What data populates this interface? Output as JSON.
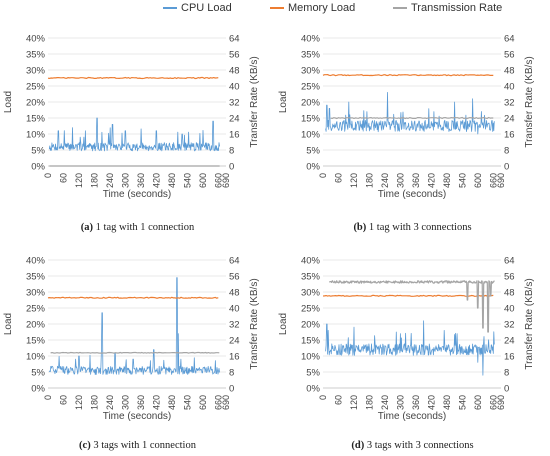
{
  "legend": {
    "items": [
      {
        "label": "CPU Load",
        "color": "#5b9bd5"
      },
      {
        "label": "Memory Load",
        "color": "#ed7d31"
      },
      {
        "label": "Transmission Rate",
        "color": "#a5a5a5"
      }
    ]
  },
  "captions": [
    {
      "letter": "(a)",
      "text": "1 tag with 1 connection"
    },
    {
      "letter": "(b)",
      "text": "1 tag with 3 connections"
    },
    {
      "letter": "(c)",
      "text": "3 tags with 1 connection"
    },
    {
      "letter": "(d)",
      "text": "3 tags with 3 connections"
    }
  ],
  "chart_data": [
    {
      "type": "line",
      "xlabel": "Time (seconds)",
      "ylabel_left": "Load",
      "ylabel_right": "Transfer Rate (KB/s)",
      "xlim": [
        0,
        690
      ],
      "xticks": [
        "0",
        "60",
        "120",
        "180",
        "240",
        "300",
        "360",
        "420",
        "480",
        "540",
        "600",
        "660",
        "690"
      ],
      "ylim_left": [
        0,
        40
      ],
      "yticks_left": [
        "0%",
        "5%",
        "10%",
        "15%",
        "20%",
        "25%",
        "30%",
        "35%",
        "40%"
      ],
      "ylim_right": [
        0,
        64
      ],
      "yticks_right": [
        "0",
        "8",
        "16",
        "24",
        "32",
        "40",
        "48",
        "56",
        "64"
      ],
      "series": [
        {
          "name": "CPU Load",
          "axis": "left",
          "start": 5,
          "end": 665,
          "base": 6.0,
          "noise": 1.3,
          "spikes": [
            [
              40,
              11
            ],
            [
              95,
              12
            ],
            [
              125,
              9
            ],
            [
              145,
              11
            ],
            [
              190,
              15
            ],
            [
              250,
              13
            ],
            [
              300,
              11
            ],
            [
              420,
              11
            ],
            [
              520,
              10
            ],
            [
              640,
              14
            ]
          ]
        },
        {
          "name": "Memory Load",
          "axis": "left",
          "start": 0,
          "end": 665,
          "base": 27.5,
          "noise": 0.15,
          "spikes": []
        },
        {
          "name": "Transmission Rate",
          "axis": "right",
          "start": 5,
          "end": 665,
          "base": 0,
          "noise": 0,
          "spikes": []
        }
      ]
    },
    {
      "type": "line",
      "xlabel": "Time (seconds)",
      "ylabel_left": "Load",
      "ylabel_right": "Transfer Rate (KB/s)",
      "xlim": [
        0,
        690
      ],
      "xticks": [
        "0",
        "60",
        "120",
        "180",
        "240",
        "300",
        "360",
        "420",
        "480",
        "540",
        "600",
        "660",
        "690"
      ],
      "ylim_left": [
        0,
        40
      ],
      "yticks_left": [
        "0%",
        "5%",
        "10%",
        "15%",
        "20%",
        "25%",
        "30%",
        "35%",
        "40%"
      ],
      "ylim_right": [
        0,
        64
      ],
      "yticks_right": [
        "0",
        "8",
        "16",
        "24",
        "32",
        "40",
        "48",
        "56",
        "64"
      ],
      "series": [
        {
          "name": "CPU Load",
          "axis": "left",
          "start": 10,
          "end": 665,
          "base": 12.5,
          "noise": 1.8,
          "spikes": [
            [
              15,
              19
            ],
            [
              25,
              18
            ],
            [
              100,
              20
            ],
            [
              170,
              17
            ],
            [
              250,
              23
            ],
            [
              310,
              18
            ],
            [
              430,
              17
            ],
            [
              510,
              20
            ],
            [
              580,
              21
            ],
            [
              600,
              10
            ]
          ]
        },
        {
          "name": "Memory Load",
          "axis": "left",
          "start": 0,
          "end": 665,
          "base": 28.4,
          "noise": 0.15,
          "spikes": []
        },
        {
          "name": "Transmission Rate",
          "axis": "right",
          "start": 30,
          "end": 665,
          "base": 24,
          "noise": 0.25,
          "spikes": []
        }
      ]
    },
    {
      "type": "line",
      "xlabel": "Time (seconds)",
      "ylabel_left": "Load",
      "ylabel_right": "Transfer Rate (KB/s)",
      "xlim": [
        0,
        690
      ],
      "xticks": [
        "0",
        "60",
        "120",
        "180",
        "240",
        "300",
        "360",
        "420",
        "480",
        "540",
        "600",
        "660",
        "690"
      ],
      "ylim_left": [
        0,
        40
      ],
      "yticks_left": [
        "0%",
        "5%",
        "10%",
        "15%",
        "20%",
        "25%",
        "30%",
        "35%",
        "40%"
      ],
      "ylim_right": [
        0,
        64
      ],
      "yticks_right": [
        "0",
        "8",
        "16",
        "24",
        "32",
        "40",
        "48",
        "56",
        "64"
      ],
      "series": [
        {
          "name": "CPU Load",
          "axis": "left",
          "start": 5,
          "end": 665,
          "base": 5.5,
          "noise": 1.3,
          "spikes": [
            [
              120,
              10
            ],
            [
              210,
              23.5
            ],
            [
              260,
              11
            ],
            [
              330,
              9
            ],
            [
              410,
              12
            ],
            [
              500,
              34.5
            ],
            [
              505,
              17
            ],
            [
              515,
              9
            ]
          ]
        },
        {
          "name": "Memory Load",
          "axis": "left",
          "start": 0,
          "end": 665,
          "base": 28.2,
          "noise": 0.15,
          "spikes": []
        },
        {
          "name": "Transmission Rate",
          "axis": "right",
          "start": 10,
          "end": 665,
          "base": 17.6,
          "noise": 0.15,
          "spikes": []
        }
      ]
    },
    {
      "type": "line",
      "xlabel": "Time (seconds)",
      "ylabel_left": "Load",
      "ylabel_right": "Transfer Rate (KB/s)",
      "xlim": [
        0,
        690
      ],
      "xticks": [
        "0",
        "60",
        "120",
        "180",
        "240",
        "300",
        "360",
        "420",
        "480",
        "540",
        "600",
        "660",
        "690"
      ],
      "ylim_left": [
        0,
        40
      ],
      "yticks_left": [
        "0%",
        "5%",
        "10%",
        "15%",
        "20%",
        "25%",
        "30%",
        "35%",
        "40%"
      ],
      "ylim_right": [
        0,
        64
      ],
      "yticks_right": [
        "0",
        "8",
        "16",
        "24",
        "32",
        "40",
        "48",
        "56",
        "64"
      ],
      "series": [
        {
          "name": "CPU Load",
          "axis": "left",
          "start": 10,
          "end": 665,
          "base": 12.0,
          "noise": 1.8,
          "spikes": [
            [
              15,
              20
            ],
            [
              20,
              18
            ],
            [
              120,
              19
            ],
            [
              200,
              18
            ],
            [
              300,
              17
            ],
            [
              390,
              21
            ],
            [
              470,
              18
            ],
            [
              520,
              17
            ],
            [
              600,
              8
            ],
            [
              620,
              4
            ]
          ]
        },
        {
          "name": "Memory Load",
          "axis": "left",
          "start": 0,
          "end": 665,
          "base": 28.8,
          "noise": 0.15,
          "spikes": []
        },
        {
          "name": "Transmission Rate",
          "axis": "right",
          "start": 25,
          "end": 665,
          "base": 53,
          "noise": 0.6,
          "spikes": [
            [
              560,
              44
            ],
            [
              600,
              40
            ],
            [
              620,
              30
            ],
            [
              640,
              28
            ],
            [
              650,
              46
            ]
          ]
        }
      ]
    }
  ]
}
